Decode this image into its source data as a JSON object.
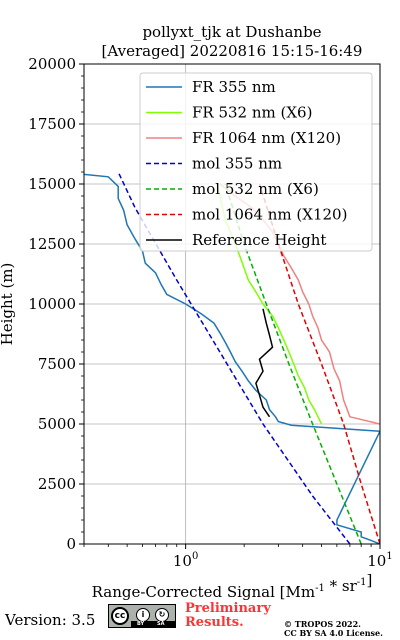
{
  "chart_data": {
    "type": "line",
    "title": "pollyxt_tjk at Dushanbe",
    "subtitle": "[Averaged] 20220816 15:15-16:49",
    "xlabel": "Range-Corrected Signal [Mm^-1 * sr^-1]",
    "ylabel": "Height (m)",
    "xscale": "log",
    "xlim": [
      0.3,
      10
    ],
    "ylim": [
      0,
      20000
    ],
    "xticks": [
      1,
      10
    ],
    "xtick_labels": [
      "10^0",
      "10^1"
    ],
    "yticks": [
      0,
      2500,
      5000,
      7500,
      10000,
      12500,
      15000,
      17500,
      20000
    ],
    "ytick_labels": [
      "0",
      "2500",
      "5000",
      "7500",
      "10000",
      "12500",
      "15000",
      "17500",
      "20000"
    ],
    "grid": true,
    "legend_position": "top-right",
    "reference_height_range": [
      5300,
      9800
    ],
    "series": [
      {
        "name": "FR 355 nm",
        "style": "solid",
        "color": "#1f77b4",
        "points": [
          [
            10,
            0
          ],
          [
            9,
            150
          ],
          [
            8,
            300
          ],
          [
            8,
            500
          ],
          [
            6,
            800
          ],
          [
            6,
            1000
          ],
          [
            10,
            4700
          ],
          [
            3.5,
            4950
          ],
          [
            3.0,
            5100
          ],
          [
            2.9,
            5300
          ],
          [
            2.7,
            5600
          ],
          [
            2.6,
            6000
          ],
          [
            2.3,
            6400
          ],
          [
            2.1,
            6800
          ],
          [
            1.95,
            7200
          ],
          [
            1.8,
            7600
          ],
          [
            1.7,
            8000
          ],
          [
            1.6,
            8400
          ],
          [
            1.5,
            8800
          ],
          [
            1.4,
            9200
          ],
          [
            1.2,
            9600
          ],
          [
            1.0,
            10000
          ],
          [
            0.8,
            10400
          ],
          [
            0.75,
            10800
          ],
          [
            0.7,
            11300
          ],
          [
            0.62,
            11700
          ],
          [
            0.6,
            12200
          ],
          [
            0.55,
            12700
          ],
          [
            0.5,
            13300
          ],
          [
            0.48,
            13900
          ],
          [
            0.45,
            14400
          ],
          [
            0.45,
            14900
          ],
          [
            0.4,
            15300
          ],
          [
            0.3,
            15400
          ]
        ]
      },
      {
        "name": "FR 532 nm (X6)",
        "style": "solid",
        "color": "#7fff00",
        "points": [
          [
            5,
            5000
          ],
          [
            4.8,
            5300
          ],
          [
            4.6,
            5600
          ],
          [
            4.3,
            6000
          ],
          [
            4.1,
            6500
          ],
          [
            3.8,
            7000
          ],
          [
            3.6,
            7500
          ],
          [
            3.4,
            8000
          ],
          [
            3.2,
            8500
          ],
          [
            3.0,
            9000
          ],
          [
            2.8,
            9500
          ],
          [
            2.5,
            10000
          ],
          [
            2.3,
            10500
          ],
          [
            2.1,
            11000
          ],
          [
            2.0,
            11500
          ],
          [
            1.9,
            12000
          ],
          [
            1.8,
            12500
          ],
          [
            1.7,
            13000
          ],
          [
            1.6,
            13500
          ],
          [
            1.55,
            14000
          ],
          [
            1.5,
            14500
          ],
          [
            1.45,
            15000
          ]
        ]
      },
      {
        "name": "FR 1064 nm (X120)",
        "style": "solid",
        "color": "#f08080",
        "points": [
          [
            10,
            5000
          ],
          [
            7,
            5300
          ],
          [
            6.5,
            6000
          ],
          [
            6.2,
            6800
          ],
          [
            5.8,
            7300
          ],
          [
            5.5,
            8000
          ],
          [
            5.0,
            8500
          ],
          [
            4.8,
            9000
          ],
          [
            4.5,
            9500
          ],
          [
            4.3,
            10000
          ],
          [
            4.0,
            10500
          ],
          [
            3.8,
            11000
          ],
          [
            3.5,
            11500
          ],
          [
            3.2,
            12000
          ],
          [
            3.0,
            12500
          ],
          [
            2.8,
            13000
          ],
          [
            2.5,
            13500
          ],
          [
            2.2,
            14000
          ],
          [
            1.8,
            14500
          ],
          [
            1.5,
            15000
          ]
        ]
      },
      {
        "name": "mol 355 nm",
        "style": "dashed",
        "color": "#0000cd",
        "points": [
          [
            7,
            0
          ],
          [
            4.5,
            2000
          ],
          [
            2.5,
            5000
          ],
          [
            1.5,
            8000
          ],
          [
            0.9,
            11000
          ],
          [
            0.55,
            14000
          ],
          [
            0.45,
            15500
          ]
        ]
      },
      {
        "name": "mol 532 nm (X6)",
        "style": "dashed",
        "color": "#00b000",
        "points": [
          [
            8,
            0
          ],
          [
            6,
            2500
          ],
          [
            4.5,
            5000
          ],
          [
            3.4,
            7500
          ],
          [
            2.6,
            10000
          ],
          [
            2.0,
            12500
          ],
          [
            1.6,
            15000
          ]
        ]
      },
      {
        "name": "mol 1064 nm (X120)",
        "style": "dashed",
        "color": "#e00000",
        "points": [
          [
            10,
            0
          ],
          [
            8,
            2500
          ],
          [
            6.5,
            5000
          ],
          [
            5,
            7500
          ],
          [
            3.8,
            10000
          ],
          [
            3.0,
            12500
          ],
          [
            2.4,
            15000
          ]
        ]
      },
      {
        "name": "Reference Height",
        "style": "solid",
        "color": "#000000",
        "points": [
          [
            2.7,
            5300
          ],
          [
            2.5,
            5700
          ],
          [
            2.4,
            6200
          ],
          [
            2.3,
            6700
          ],
          [
            2.5,
            7200
          ],
          [
            2.4,
            7700
          ],
          [
            2.8,
            8200
          ],
          [
            2.7,
            8700
          ],
          [
            2.6,
            9200
          ],
          [
            2.5,
            9800
          ]
        ]
      }
    ]
  },
  "footer": {
    "version": "Version: 3.5",
    "cc_badge": {
      "cc": "cc",
      "by": "BY",
      "sa": "SA"
    },
    "preliminary": "Preliminary",
    "results": "Results.",
    "copyright": "© TROPOS 2022.",
    "license": "CC BY SA 4.0 License."
  }
}
